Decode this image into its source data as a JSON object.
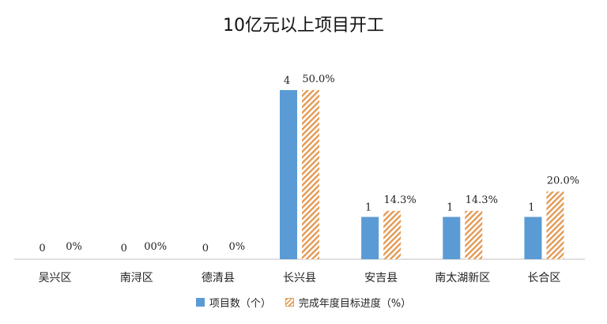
{
  "chart_data": {
    "type": "bar",
    "title": "10亿元以上项目开工",
    "categories": [
      "吴兴区",
      "南浔区",
      "德清县",
      "长兴县",
      "安吉县",
      "南太湖新区",
      "长合区"
    ],
    "series": [
      {
        "name": "项目数（个）",
        "values": [
          0,
          0,
          0,
          4,
          1,
          1,
          1
        ],
        "labels": [
          "0",
          "0",
          "0",
          "4",
          "1",
          "1",
          "1"
        ],
        "color": "#5b9bd5"
      },
      {
        "name": "完成年度目标进度（%）",
        "values": [
          0,
          0,
          0,
          50.0,
          14.3,
          14.3,
          20.0
        ],
        "labels": [
          "0%",
          "00%",
          "0%",
          "50.0%",
          "14.3%",
          "14.3%",
          "20.0%"
        ],
        "color": "#e7a261"
      }
    ],
    "legend_position": "bottom",
    "grid": false
  }
}
